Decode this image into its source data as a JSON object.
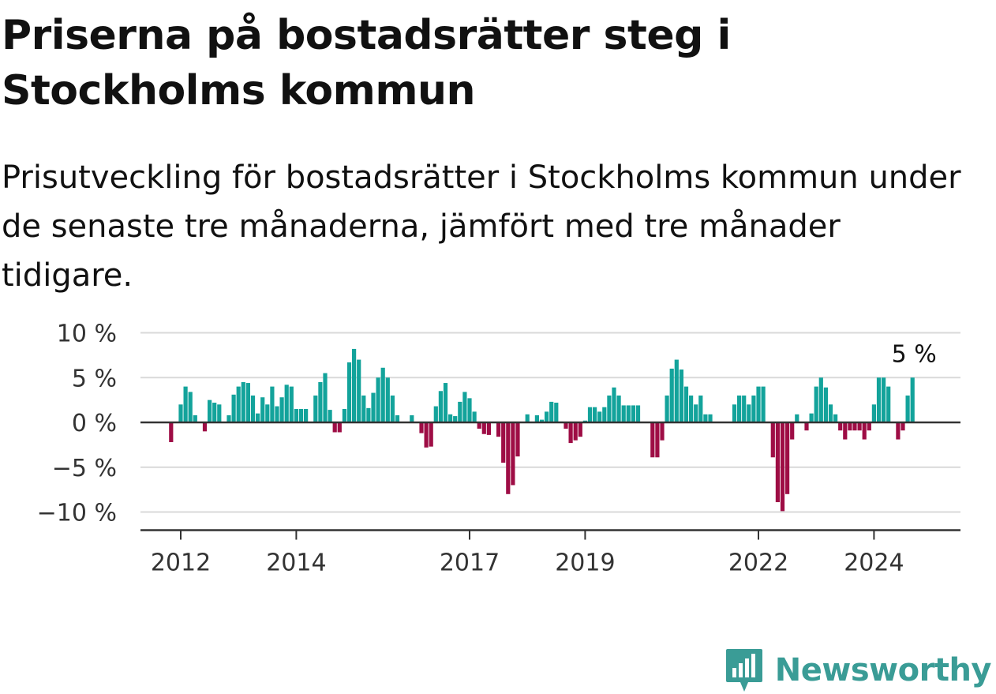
{
  "title": "Priserna på bostadsrätter steg i Stockholms kommun",
  "subtitle": "Prisutveckling för bostadsrätter i Stockholms kommun under de senaste tre månaderna, jämfört med tre månader tidigare.",
  "brand": {
    "name": "Newsworthy",
    "icon": "newsworthy-logo-icon"
  },
  "colors": {
    "positive": "#13a39b",
    "negative": "#9e0d45",
    "grid": "#d9d9d9",
    "axis": "#333333",
    "brand": "#3a9c96"
  },
  "chart_data": {
    "type": "bar",
    "ylabel": "",
    "xlabel": "",
    "ylim": [
      -11.5,
      10
    ],
    "y_ticks": [
      10,
      5,
      0,
      -5,
      -10
    ],
    "y_tick_labels": [
      "10 %",
      "5 %",
      "0 %",
      "−5 %",
      "−10 %"
    ],
    "x_ticks": [
      "2012-01",
      "2014-01",
      "2017-01",
      "2019-01",
      "2022-01",
      "2024-01"
    ],
    "x_tick_labels": [
      "2012",
      "2014",
      "2017",
      "2019",
      "2022",
      "2024"
    ],
    "annotation": {
      "text": "5 %",
      "x": "2024-09",
      "value": 5
    },
    "grid": true,
    "categories": [
      "2011-11",
      "2011-12",
      "2012-01",
      "2012-02",
      "2012-03",
      "2012-04",
      "2012-05",
      "2012-06",
      "2012-07",
      "2012-08",
      "2012-09",
      "2012-10",
      "2012-11",
      "2012-12",
      "2013-01",
      "2013-02",
      "2013-03",
      "2013-04",
      "2013-05",
      "2013-06",
      "2013-07",
      "2013-08",
      "2013-09",
      "2013-10",
      "2013-11",
      "2013-12",
      "2014-01",
      "2014-02",
      "2014-03",
      "2014-04",
      "2014-05",
      "2014-06",
      "2014-07",
      "2014-08",
      "2014-09",
      "2014-10",
      "2014-11",
      "2014-12",
      "2015-01",
      "2015-02",
      "2015-03",
      "2015-04",
      "2015-05",
      "2015-06",
      "2015-07",
      "2015-08",
      "2015-09",
      "2015-10",
      "2015-11",
      "2015-12",
      "2016-01",
      "2016-02",
      "2016-03",
      "2016-04",
      "2016-05",
      "2016-06",
      "2016-07",
      "2016-08",
      "2016-09",
      "2016-10",
      "2016-11",
      "2016-12",
      "2017-01",
      "2017-02",
      "2017-03",
      "2017-04",
      "2017-05",
      "2017-06",
      "2017-07",
      "2017-08",
      "2017-09",
      "2017-10",
      "2017-11",
      "2017-12",
      "2018-01",
      "2018-02",
      "2018-03",
      "2018-04",
      "2018-05",
      "2018-06",
      "2018-07",
      "2018-08",
      "2018-09",
      "2018-10",
      "2018-11",
      "2018-12",
      "2019-01",
      "2019-02",
      "2019-03",
      "2019-04",
      "2019-05",
      "2019-06",
      "2019-07",
      "2019-08",
      "2019-09",
      "2019-10",
      "2019-11",
      "2019-12",
      "2020-01",
      "2020-02",
      "2020-03",
      "2020-04",
      "2020-05",
      "2020-06",
      "2020-07",
      "2020-08",
      "2020-09",
      "2020-10",
      "2020-11",
      "2020-12",
      "2021-01",
      "2021-02",
      "2021-03",
      "2021-04",
      "2021-05",
      "2021-06",
      "2021-07",
      "2021-08",
      "2021-09",
      "2021-10",
      "2021-11",
      "2021-12",
      "2022-01",
      "2022-02",
      "2022-03",
      "2022-04",
      "2022-05",
      "2022-06",
      "2022-07",
      "2022-08",
      "2022-09",
      "2022-10",
      "2022-11",
      "2022-12",
      "2023-01",
      "2023-02",
      "2023-03",
      "2023-04",
      "2023-05",
      "2023-06",
      "2023-07",
      "2023-08",
      "2023-09",
      "2023-10",
      "2023-11",
      "2023-12",
      "2024-01",
      "2024-02",
      "2024-03",
      "2024-04",
      "2024-05",
      "2024-06",
      "2024-07",
      "2024-08",
      "2024-09"
    ],
    "values": [
      -2.2,
      0,
      2.0,
      4.0,
      3.4,
      0.8,
      0,
      -1.0,
      2.5,
      2.2,
      2.0,
      0,
      0.8,
      3.1,
      4.0,
      4.5,
      4.4,
      3.0,
      1.0,
      2.8,
      2.0,
      4.0,
      1.8,
      2.8,
      4.2,
      4.0,
      1.5,
      1.5,
      1.5,
      0,
      3.0,
      4.5,
      5.5,
      1.4,
      -1.1,
      -1.1,
      1.5,
      6.7,
      8.2,
      7.0,
      3.0,
      1.6,
      3.3,
      5.0,
      6.1,
      5.0,
      3.0,
      0.8,
      0,
      0,
      0.8,
      0,
      -1.2,
      -2.8,
      -2.7,
      1.8,
      3.5,
      4.4,
      0.9,
      0.7,
      2.3,
      3.4,
      2.7,
      1.2,
      -0.7,
      -1.3,
      -1.4,
      0,
      -1.6,
      -4.5,
      -8.0,
      -7.0,
      -3.8,
      0,
      0.9,
      0,
      0.8,
      0.3,
      1.2,
      2.3,
      2.2,
      0.1,
      -0.7,
      -2.3,
      -2.0,
      -1.6,
      0.2,
      1.7,
      1.7,
      1.2,
      1.7,
      3.0,
      3.9,
      3.0,
      1.9,
      1.9,
      1.9,
      1.9,
      0,
      0,
      -3.9,
      -3.9,
      -2.0,
      3.0,
      6.0,
      7.0,
      5.9,
      4.0,
      3.0,
      2.0,
      3.0,
      0.9,
      0.9,
      0,
      0,
      0,
      0,
      2.0,
      3.0,
      3.0,
      2.0,
      3.0,
      4.0,
      4.0,
      0,
      -3.9,
      -8.9,
      -9.9,
      -8.0,
      -1.9,
      0.9,
      0,
      -0.9,
      1.0,
      4.0,
      5.0,
      3.9,
      2.0,
      0.9,
      -0.9,
      -1.9,
      -0.9,
      -0.9,
      -0.9,
      -1.9,
      -0.9,
      2.0,
      5.0,
      5.0,
      4.0,
      0,
      -1.9,
      -0.9,
      3.0,
      5.0
    ]
  }
}
